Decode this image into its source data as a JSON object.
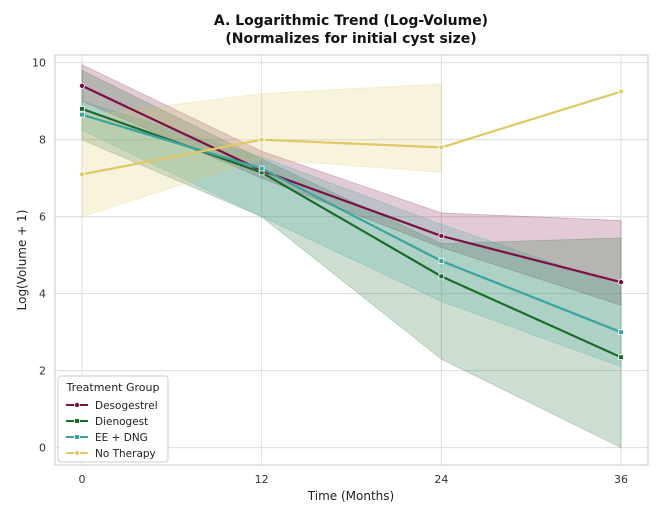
{
  "chart_data": {
    "type": "line",
    "title": "A. Logarithmic Trend (Log-Volume)",
    "subtitle": "(Normalizes for initial cyst size)",
    "xlabel": "Time (Months)",
    "ylabel": "Log(Volume + 1)",
    "x": [
      0,
      12,
      24,
      36
    ],
    "xticks": [
      "0",
      "12",
      "24",
      "36"
    ],
    "yticks": [
      "0",
      "2",
      "4",
      "6",
      "8",
      "10"
    ],
    "xlim": [
      -1.8,
      37.8
    ],
    "ylim": [
      -0.45,
      10.2
    ],
    "grid": true,
    "legend": {
      "title": "Treatment Group",
      "position": "lower-left"
    },
    "series": [
      {
        "name": "Desogestrel",
        "color": "#7b1044",
        "marker": "circle",
        "values": [
          9.4,
          7.2,
          5.5,
          4.3
        ],
        "ci_lower": [
          9.0,
          7.0,
          5.2,
          3.7
        ],
        "ci_upper": [
          9.95,
          7.7,
          6.1,
          5.9
        ]
      },
      {
        "name": "Dienogest",
        "color": "#1a6b2c",
        "marker": "square",
        "values": [
          8.8,
          7.15,
          4.45,
          2.35
        ],
        "ci_lower": [
          8.0,
          6.0,
          2.3,
          0.0
        ],
        "ci_upper": [
          9.8,
          7.5,
          5.3,
          5.45
        ]
      },
      {
        "name": "EE + DNG",
        "color": "#3ba39c",
        "marker": "square",
        "values": [
          8.65,
          7.25,
          4.85,
          3.0
        ],
        "ci_lower": [
          8.25,
          6.0,
          3.8,
          2.1
        ],
        "ci_upper": [
          9.0,
          7.55,
          5.8,
          4.2
        ]
      },
      {
        "name": "No Therapy",
        "color": "#e0c964",
        "marker": "diamond",
        "values": [
          7.1,
          8.0,
          7.8,
          9.25
        ],
        "ci_lower": [
          6.0,
          7.5,
          7.15,
          null
        ],
        "ci_upper": [
          8.6,
          9.2,
          9.45,
          null
        ]
      }
    ]
  }
}
